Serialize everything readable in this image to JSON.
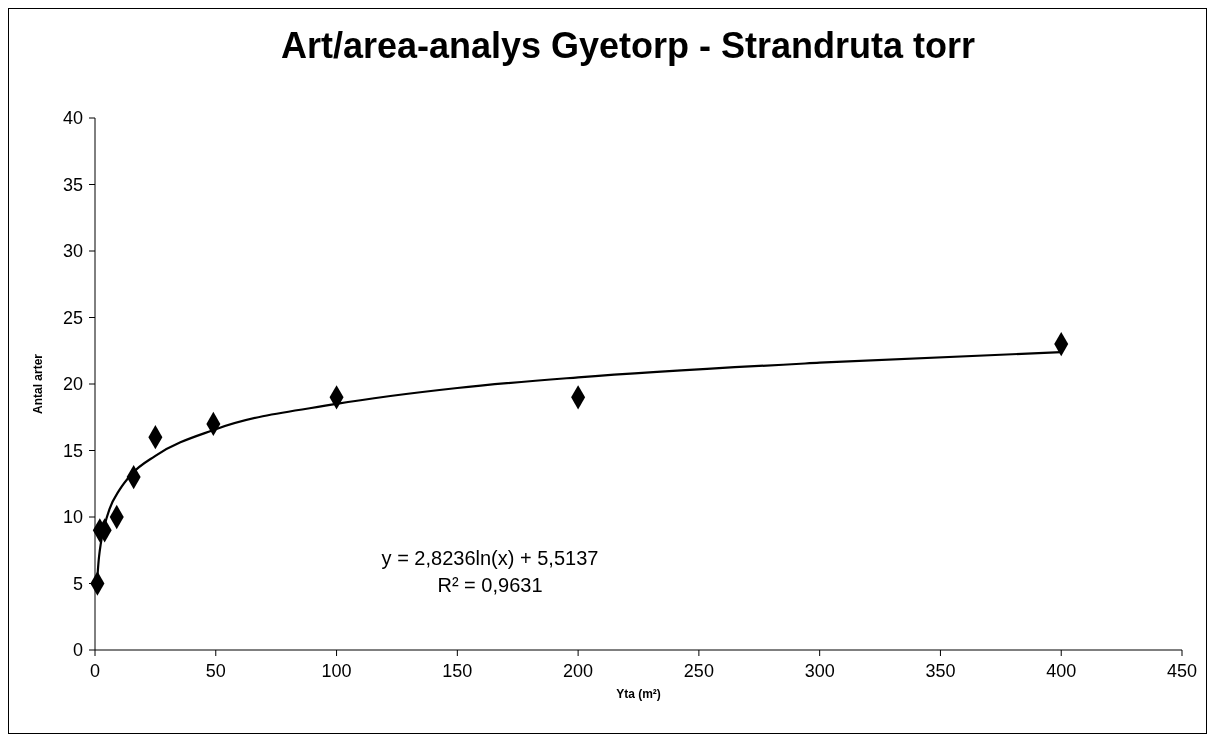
{
  "chart_data": {
    "type": "scatter",
    "title": "Art/area-analys Gyetorp - Strandruta torr",
    "xlabel": "Yta (m²)",
    "ylabel": "Antal arter",
    "xlim": [
      0,
      450
    ],
    "xticks": [
      0,
      50,
      100,
      150,
      200,
      250,
      300,
      350,
      400,
      450
    ],
    "ylim": [
      0,
      40
    ],
    "yticks": [
      0,
      5,
      10,
      15,
      20,
      25,
      30,
      35,
      40
    ],
    "grid": false,
    "marker": "diamond",
    "series": [
      {
        "color": "#000000",
        "x": [
          1,
          2,
          4,
          9,
          16,
          25,
          49,
          100,
          200,
          400
        ],
        "values": [
          5,
          9,
          9,
          10,
          13,
          16,
          17,
          19,
          19,
          23
        ]
      },
      {
        "type": "line",
        "color": "#000000",
        "marker": "none",
        "x": [
          1,
          1.5,
          2,
          3,
          4,
          6,
          10,
          15,
          25,
          50,
          100,
          150,
          200,
          300,
          400
        ],
        "values": [
          5.5,
          6.7,
          7.5,
          8.6,
          9.4,
          10.6,
          12.0,
          13.2,
          14.6,
          16.6,
          18.5,
          19.7,
          20.5,
          21.6,
          22.4
        ]
      }
    ],
    "annotations": [
      "y = 2,8236ln(x) + 5,5137",
      "R² = 0,9631"
    ]
  }
}
